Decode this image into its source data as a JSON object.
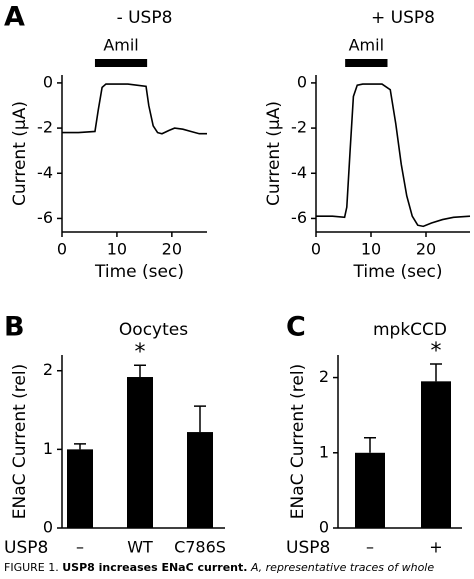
{
  "chart_data": [
    {
      "type": "line",
      "panel": "A",
      "title": "- USP8",
      "xlabel": "Time (sec)",
      "ylabel": "Current (µA)",
      "stimulus": {
        "label": "Amil",
        "start": 6,
        "end": 15.5
      },
      "x": [
        0,
        3,
        6,
        6.6,
        7.3,
        8,
        12,
        15.3,
        15.8,
        16.6,
        17.4,
        18.2,
        19.5,
        20.5,
        22,
        23.5,
        25,
        26.4
      ],
      "series": [
        {
          "name": "- USP8",
          "color": "#000000",
          "values": [
            -2.2,
            -2.2,
            -2.15,
            -1.2,
            -0.2,
            -0.05,
            -0.05,
            -0.15,
            -1.0,
            -1.9,
            -2.2,
            -2.25,
            -2.1,
            -2.0,
            -2.05,
            -2.15,
            -2.25,
            -2.25
          ]
        }
      ],
      "xlim": [
        0,
        26.4
      ],
      "xticks": [
        0,
        10,
        20
      ],
      "ylim": [
        -6.6,
        0.35
      ],
      "yticks": [
        0,
        -2,
        -4,
        -6
      ]
    },
    {
      "type": "line",
      "title": "+ USP8",
      "xlabel": "Time (sec)",
      "ylabel": "Current (µA)",
      "stimulus": {
        "label": "Amil",
        "start": 5.3,
        "end": 13
      },
      "x": [
        0,
        3,
        5.2,
        5.6,
        6.2,
        6.8,
        7.5,
        8.5,
        12,
        13.5,
        14.5,
        15.5,
        16.5,
        17.5,
        18.5,
        19.5,
        21,
        23,
        25,
        28
      ],
      "series": [
        {
          "name": "+ USP8",
          "color": "#000000",
          "values": [
            -5.9,
            -5.9,
            -5.95,
            -5.5,
            -3.0,
            -0.6,
            -0.1,
            -0.05,
            -0.05,
            -0.3,
            -1.8,
            -3.6,
            -5.0,
            -5.9,
            -6.3,
            -6.35,
            -6.2,
            -6.05,
            -5.95,
            -5.9
          ]
        }
      ],
      "xlim": [
        0,
        28
      ],
      "xticks": [
        0,
        10,
        20
      ],
      "ylim": [
        -6.6,
        0.35
      ],
      "yticks": [
        0,
        -2,
        -4,
        -6
      ]
    },
    {
      "type": "bar",
      "panel": "B",
      "title": "Oocytes",
      "xlabel": "USP8",
      "ylabel": "ENaC Current (rel)",
      "categories": [
        "–",
        "WT",
        "C786S"
      ],
      "values": [
        1.0,
        1.92,
        1.22
      ],
      "errors": [
        0.07,
        0.15,
        0.33
      ],
      "significance": [
        null,
        "*",
        null
      ],
      "color": "#000000",
      "ylim": [
        0,
        2.2
      ],
      "yticks": [
        0,
        1,
        2
      ]
    },
    {
      "type": "bar",
      "panel": "C",
      "title": "mpkCCD",
      "xlabel": "USP8",
      "ylabel": "ENaC Current (rel)",
      "categories": [
        "–",
        "+"
      ],
      "values": [
        1.0,
        1.95
      ],
      "errors": [
        0.2,
        0.23
      ],
      "significance": [
        null,
        "*"
      ],
      "color": "#000000",
      "ylim": [
        0,
        2.3
      ],
      "yticks": [
        0,
        1,
        2
      ]
    }
  ],
  "caption": {
    "label": "FIGURE 1.",
    "bold": "USP8 increases ENaC current.",
    "text": "A, representative traces of whole"
  }
}
